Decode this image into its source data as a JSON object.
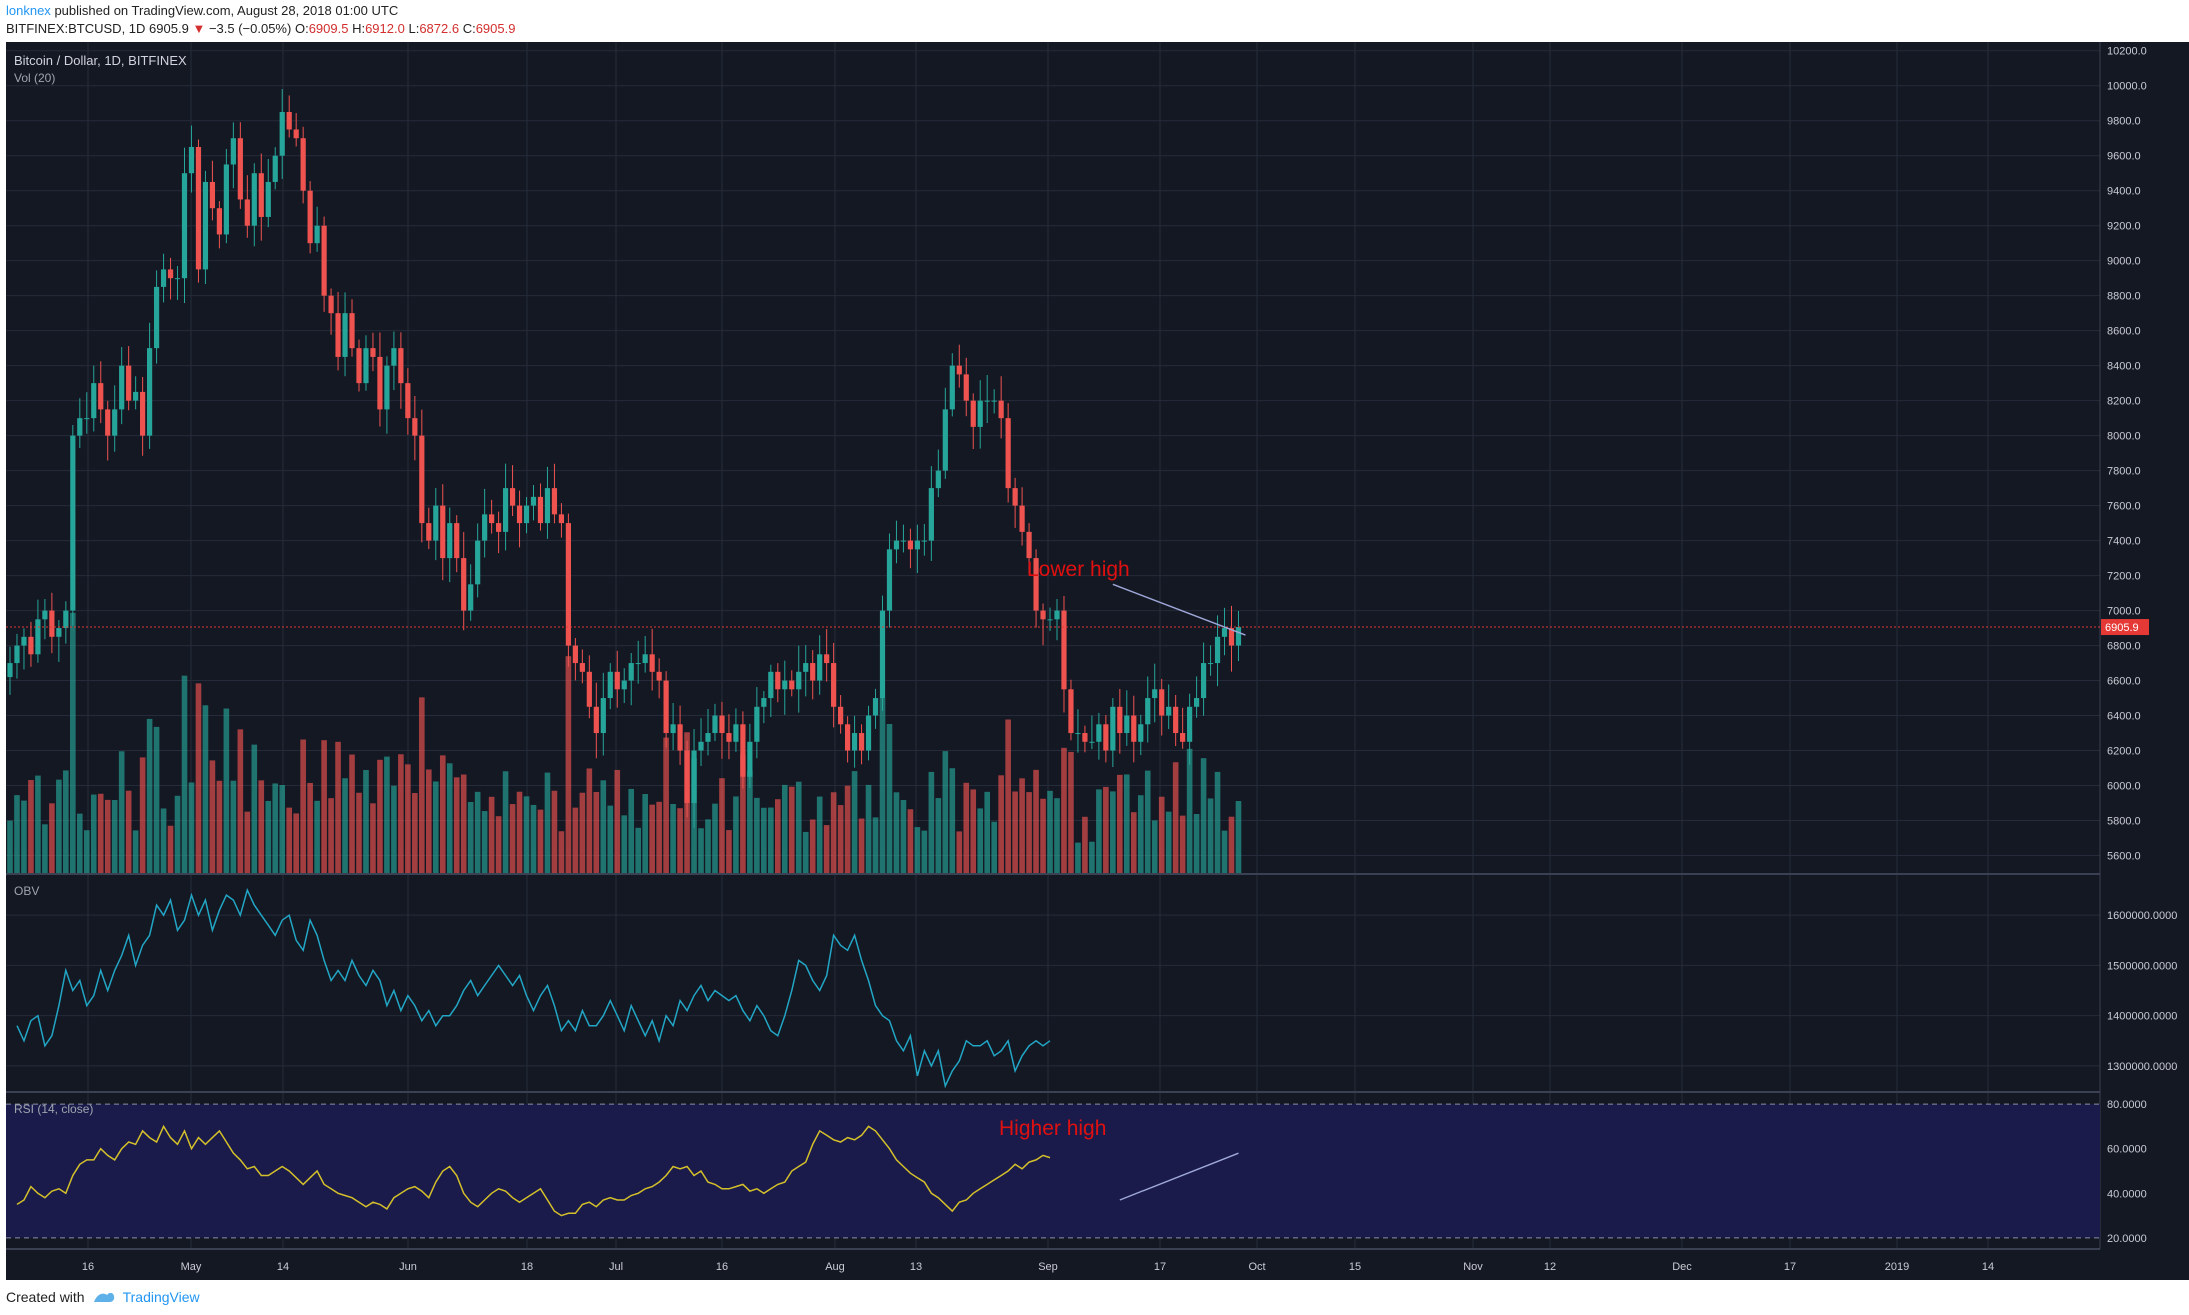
{
  "header": {
    "author": "lonknex",
    "published": "published on TradingView.com, August 28, 2018 01:00 UTC",
    "symbol": "BITFINEX:BTCUSD, 1D",
    "last": "6905.9",
    "change": "−3.5 (−0.05%)",
    "o_label": "O:",
    "o": "6909.5",
    "h_label": "H:",
    "h": "6912.0",
    "l_label": "L:",
    "l": "6872.6",
    "c_label": "C:",
    "c": "6905.9"
  },
  "footer": {
    "created": "Created with",
    "brand": "TradingView"
  },
  "colors": {
    "background": "#141823",
    "grid": "#252b3a",
    "up": "#26a69a",
    "down": "#ef5350",
    "obv_line": "#22a6c5",
    "rsi_line": "#d4c02a",
    "rsi_band": "#1a1b4b",
    "annotation": "#e01010",
    "trendline": "#9fa8da",
    "price_line": "#e53935"
  },
  "chart_data": [
    {
      "type": "candlestick",
      "title": "Bitcoin / Dollar, 1D, BITFINEX",
      "subtitle": "Vol (20)",
      "ylim": [
        5500,
        10250
      ],
      "y_ticks": [
        "10200.0",
        "10000.0",
        "9800.0",
        "9600.0",
        "9400.0",
        "9200.0",
        "9000.0",
        "8800.0",
        "8600.0",
        "8400.0",
        "8200.0",
        "8000.0",
        "7800.0",
        "7600.0",
        "7400.0",
        "7200.0",
        "7000.0",
        "6800.0",
        "6600.0",
        "6400.0",
        "6200.0",
        "6000.0",
        "5800.0",
        "5600.0"
      ],
      "last_price_label": "6905.9",
      "last_price": 6905.9,
      "close": [
        6700,
        6800,
        6850,
        6750,
        6950,
        7000,
        6850,
        6900,
        7000,
        8000,
        8100,
        8100,
        8300,
        8150,
        8000,
        8150,
        8400,
        8200,
        8250,
        8000,
        8500,
        8850,
        8950,
        8900,
        8900,
        9500,
        9650,
        8950,
        9450,
        9300,
        9150,
        9550,
        9700,
        9350,
        9200,
        9500,
        9250,
        9450,
        9600,
        9850,
        9750,
        9700,
        9400,
        9100,
        9200,
        8800,
        8700,
        8450,
        8700,
        8500,
        8300,
        8500,
        8450,
        8150,
        8400,
        8500,
        8300,
        8100,
        8000,
        7500,
        7400,
        7600,
        7300,
        7500,
        7300,
        7000,
        7150,
        7400,
        7550,
        7500,
        7450,
        7700,
        7600,
        7500,
        7600,
        7650,
        7500,
        7700,
        7550,
        7500,
        6800,
        6700,
        6650,
        6450,
        6300,
        6500,
        6650,
        6550,
        6600,
        6700,
        6700,
        6750,
        6650,
        6600,
        6300,
        6350,
        6200,
        5900,
        6200,
        6250,
        6300,
        6400,
        6300,
        6250,
        6350,
        6050,
        6250,
        6450,
        6500,
        6650,
        6550,
        6600,
        6550,
        6650,
        6700,
        6600,
        6750,
        6700,
        6450,
        6350,
        6200,
        6300,
        6200,
        6400,
        6500,
        7000,
        7350,
        7400,
        7400,
        7350,
        7400,
        7400,
        7700,
        7800,
        8150,
        8400,
        8350,
        8200,
        8050,
        8200,
        8200,
        8200,
        8100,
        7700,
        7600,
        7450,
        7300,
        7000,
        6950,
        6950,
        7000,
        6550,
        6300,
        6300,
        6250,
        6250,
        6350,
        6200,
        6450,
        6300,
        6400,
        6250,
        6350,
        6500,
        6550,
        6400,
        6450,
        6300,
        6250,
        6450,
        6500,
        6700,
        6700,
        6850,
        6900,
        6800,
        6905.9
      ],
      "x_ticks": [
        "16",
        "May",
        "14",
        "Jun",
        "18",
        "Jul",
        "16",
        "Aug",
        "13",
        "Sep",
        "17",
        "Oct",
        "15",
        "Nov",
        "12",
        "Dec",
        "17",
        "2019",
        "14"
      ],
      "annotation": "Lower high",
      "trendline": {
        "from": [
          "2018-08-06",
          7150
        ],
        "to": [
          "2018-09-02",
          6860
        ]
      }
    },
    {
      "type": "line",
      "title": "OBV",
      "ylim": [
        1250000,
        1680000
      ],
      "y_ticks": [
        "1600000.0000",
        "1500000.0000",
        "1400000.0000",
        "1300000.0000"
      ],
      "values": [
        1380000,
        1350000,
        1390000,
        1400000,
        1340000,
        1360000,
        1420000,
        1490000,
        1450000,
        1470000,
        1420000,
        1440000,
        1490000,
        1450000,
        1490000,
        1520000,
        1560000,
        1500000,
        1540000,
        1560000,
        1620000,
        1600000,
        1630000,
        1570000,
        1590000,
        1640000,
        1600000,
        1630000,
        1570000,
        1610000,
        1640000,
        1630000,
        1600000,
        1650000,
        1620000,
        1600000,
        1580000,
        1560000,
        1590000,
        1600000,
        1550000,
        1530000,
        1590000,
        1560000,
        1510000,
        1470000,
        1490000,
        1470000,
        1510000,
        1480000,
        1460000,
        1490000,
        1470000,
        1420000,
        1450000,
        1410000,
        1440000,
        1420000,
        1390000,
        1410000,
        1380000,
        1400000,
        1400000,
        1420000,
        1450000,
        1470000,
        1440000,
        1460000,
        1480000,
        1500000,
        1480000,
        1460000,
        1480000,
        1440000,
        1410000,
        1440000,
        1460000,
        1420000,
        1370000,
        1390000,
        1370000,
        1410000,
        1380000,
        1380000,
        1400000,
        1430000,
        1400000,
        1370000,
        1420000,
        1390000,
        1360000,
        1390000,
        1350000,
        1400000,
        1380000,
        1430000,
        1410000,
        1440000,
        1460000,
        1430000,
        1450000,
        1440000,
        1430000,
        1440000,
        1410000,
        1390000,
        1420000,
        1400000,
        1370000,
        1360000,
        1400000,
        1450000,
        1510000,
        1500000,
        1470000,
        1450000,
        1480000,
        1560000,
        1540000,
        1530000,
        1560000,
        1510000,
        1470000,
        1420000,
        1400000,
        1390000,
        1350000,
        1330000,
        1360000,
        1280000,
        1330000,
        1300000,
        1330000,
        1260000,
        1290000,
        1310000,
        1350000,
        1340000,
        1340000,
        1350000,
        1320000,
        1330000,
        1350000,
        1290000,
        1320000,
        1340000,
        1350000,
        1340000,
        1350000
      ],
      "line_range": [
        1,
        149
      ],
      "note_labels": []
    },
    {
      "type": "line",
      "title": "RSI (14, close)",
      "ylim": [
        15,
        85
      ],
      "y_ticks": [
        "80.0000",
        "60.0000",
        "40.0000",
        "20.0000"
      ],
      "band": [
        20,
        80
      ],
      "values": [
        35,
        37,
        43,
        40,
        38,
        41,
        42,
        40,
        48,
        53,
        55,
        55,
        60,
        57,
        55,
        60,
        63,
        62,
        68,
        65,
        63,
        70,
        65,
        62,
        68,
        60,
        65,
        62,
        65,
        68,
        63,
        58,
        55,
        51,
        52,
        48,
        48,
        50,
        52,
        50,
        47,
        44,
        47,
        50,
        44,
        42,
        40,
        39,
        38,
        36,
        34,
        36,
        35,
        33,
        38,
        40,
        42,
        43,
        41,
        38,
        45,
        50,
        52,
        48,
        40,
        36,
        34,
        37,
        40,
        42,
        41,
        38,
        36,
        38,
        40,
        42,
        37,
        32,
        30,
        31,
        31,
        35,
        36,
        34,
        37,
        38,
        37,
        37,
        39,
        40,
        42,
        43,
        45,
        48,
        52,
        51,
        52,
        48,
        50,
        45,
        44,
        42,
        42,
        43,
        44,
        41,
        42,
        40,
        42,
        44,
        45,
        50,
        52,
        54,
        62,
        68,
        66,
        64,
        63,
        65,
        64,
        66,
        70,
        68,
        64,
        60,
        55,
        52,
        49,
        47,
        45,
        40,
        38,
        35,
        32,
        36,
        37,
        40,
        42,
        44,
        46,
        48,
        50,
        53,
        51,
        54,
        55,
        57,
        56
      ],
      "annotation": "Higher high",
      "trendline": {
        "from": [
          "2018-08-07",
          37
        ],
        "to": [
          "2018-09-01",
          58
        ]
      }
    }
  ]
}
